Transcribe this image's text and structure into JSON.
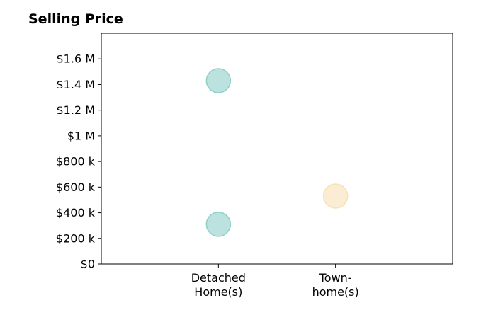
{
  "chart_data": {
    "type": "scatter",
    "title": "Selling Price",
    "xlabel": "",
    "ylabel": "",
    "categories": [
      [
        "Detached",
        "Home(s)"
      ],
      [
        "Town-",
        "home(s)"
      ]
    ],
    "yticks": [
      0,
      200000,
      400000,
      600000,
      800000,
      1000000,
      1200000,
      1400000,
      1600000
    ],
    "ytick_labels": [
      "$0",
      "$200 k",
      "$400 k",
      "$600 k",
      "$800 k",
      "$1 M",
      "$1.2 M",
      "$1.4 M",
      "$1.6 M"
    ],
    "ylim": [
      0,
      1800000
    ],
    "xlim": [
      -1,
      2
    ],
    "grid": false,
    "series": [
      {
        "category_index": 0,
        "values": [
          1430000,
          310000
        ],
        "color": "#8ecfc9"
      },
      {
        "category_index": 1,
        "values": [
          530000
        ],
        "color": "#f7e1b5"
      }
    ]
  }
}
